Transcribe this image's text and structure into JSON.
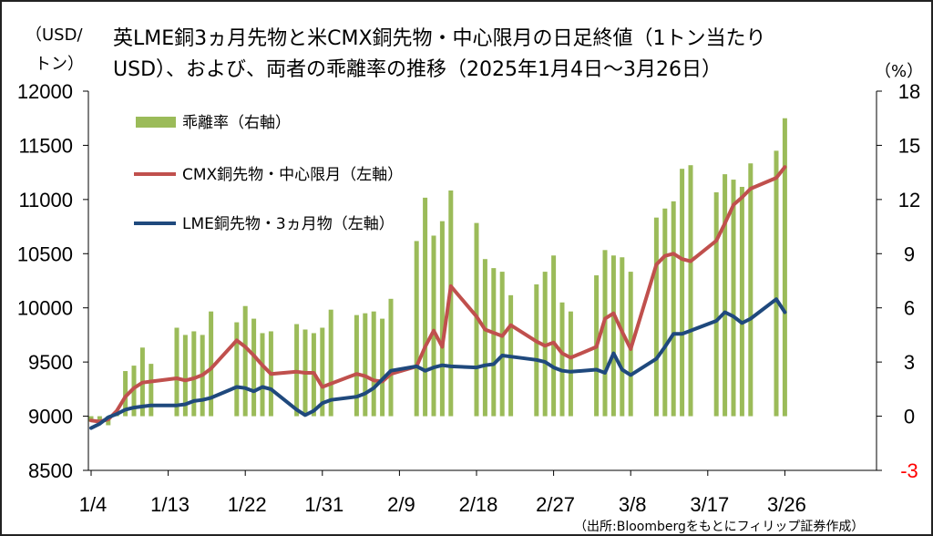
{
  "title": {
    "line1": "英LME銅3ヵ月先物と米CMX銅先物・中心限月の日足終値（1トン当たり",
    "line2": "USD）、および、両者の乖離率の推移（2025年1月4日～3月26日）"
  },
  "left_axis_label": {
    "line1": "（USD/",
    "line2": "トン）"
  },
  "right_axis_label": "（%）",
  "source": "（出所:Bloombergをもとにフィリップ証券作成）",
  "colors": {
    "bar": "#9bbb59",
    "cmx": "#c0504d",
    "lme": "#1f497d",
    "negative_tick": "#ff0000"
  },
  "chart_data": {
    "type": "bar+line",
    "x_tick_labels": [
      "1/4",
      "1/13",
      "1/22",
      "1/31",
      "2/9",
      "2/18",
      "2/27",
      "3/8",
      "3/17",
      "3/26"
    ],
    "x_tick_days": [
      0,
      9,
      18,
      27,
      36,
      45,
      54,
      63,
      72,
      81
    ],
    "left_axis": {
      "min": 8500,
      "max": 12000,
      "step": 500,
      "ticks": [
        "8500",
        "9000",
        "9500",
        "10000",
        "10500",
        "11000",
        "11500",
        "12000"
      ]
    },
    "right_axis": {
      "min": -3,
      "max": 18,
      "step": 3,
      "ticks": [
        "-3",
        "0",
        "3",
        "6",
        "9",
        "12",
        "15",
        "18"
      ]
    },
    "grid": false,
    "legend_position": "top-left",
    "legend": [
      {
        "label": "乖離率（右軸）",
        "kind": "bar"
      },
      {
        "label": "CMX銅先物・中心限月（左軸）",
        "kind": "line"
      },
      {
        "label": "LME銅先物・3ヵ月物（左軸）",
        "kind": "line"
      }
    ],
    "series": [
      {
        "name": "乖離率（右軸）",
        "type": "bar",
        "axis": "right",
        "x": [
          0,
          1,
          2,
          3,
          4,
          5,
          6,
          7,
          10,
          11,
          12,
          13,
          14,
          17,
          18,
          19,
          20,
          21,
          24,
          25,
          26,
          27,
          28,
          31,
          32,
          33,
          34,
          35,
          38,
          39,
          40,
          41,
          42,
          45,
          46,
          47,
          48,
          49,
          52,
          53,
          54,
          55,
          56,
          59,
          60,
          61,
          62,
          63,
          66,
          67,
          68,
          69,
          70,
          73,
          74,
          75,
          76,
          77,
          80,
          81
        ],
        "values": [
          -0.3,
          -0.4,
          -0.5,
          0.2,
          2.5,
          2.8,
          3.8,
          2.9,
          4.9,
          4.5,
          4.7,
          4.5,
          5.8,
          5.2,
          6.1,
          5.4,
          4.6,
          4.7,
          5.1,
          4.8,
          4.6,
          4.9,
          5.9,
          5.6,
          5.7,
          5.8,
          5.4,
          6.5,
          9.7,
          12.1,
          10.0,
          10.8,
          12.5,
          10.7,
          8.7,
          8.2,
          8.0,
          6.7,
          7.3,
          8.0,
          8.9,
          6.3,
          5.8,
          7.8,
          9.2,
          8.9,
          8.8,
          8.0,
          11.0,
          11.5,
          11.9,
          13.7,
          13.9,
          12.4,
          13.4,
          13.1,
          12.7,
          14.0,
          14.7,
          16.5
        ]
      },
      {
        "name": "CMX銅先物・中心限月（左軸）",
        "type": "line",
        "axis": "left",
        "x": [
          0,
          1,
          2,
          3,
          4,
          5,
          6,
          7,
          10,
          11,
          12,
          13,
          14,
          17,
          18,
          19,
          20,
          21,
          24,
          25,
          26,
          27,
          28,
          31,
          32,
          33,
          34,
          35,
          38,
          39,
          40,
          41,
          42,
          45,
          46,
          47,
          48,
          49,
          52,
          53,
          54,
          55,
          56,
          59,
          60,
          61,
          62,
          63,
          66,
          67,
          68,
          69,
          70,
          73,
          74,
          75,
          76,
          77,
          80,
          81
        ],
        "values": [
          8960,
          8950,
          8970,
          9050,
          9180,
          9260,
          9310,
          9320,
          9350,
          9330,
          9350,
          9380,
          9440,
          9700,
          9640,
          9560,
          9470,
          9390,
          9410,
          9400,
          9400,
          9270,
          9300,
          9390,
          9370,
          9330,
          9320,
          9390,
          9460,
          9640,
          9790,
          9640,
          10200,
          9920,
          9800,
          9770,
          9740,
          9840,
          9690,
          9650,
          9680,
          9580,
          9540,
          9640,
          9900,
          9950,
          9780,
          9620,
          10400,
          10480,
          10500,
          10450,
          10430,
          10620,
          10780,
          10950,
          11020,
          11100,
          11200,
          11300
        ]
      },
      {
        "name": "LME銅先物・3ヵ月物（左軸）",
        "type": "line",
        "axis": "left",
        "x": [
          0,
          1,
          2,
          3,
          4,
          5,
          6,
          7,
          10,
          11,
          12,
          13,
          14,
          17,
          18,
          19,
          20,
          21,
          24,
          25,
          26,
          27,
          28,
          31,
          32,
          33,
          34,
          35,
          38,
          39,
          40,
          41,
          42,
          45,
          46,
          47,
          48,
          49,
          52,
          53,
          54,
          55,
          56,
          59,
          60,
          61,
          62,
          63,
          66,
          67,
          68,
          69,
          70,
          73,
          74,
          75,
          76,
          77,
          80,
          81
        ],
        "values": [
          8890,
          8930,
          8990,
          9020,
          9060,
          9080,
          9090,
          9100,
          9100,
          9110,
          9140,
          9150,
          9170,
          9270,
          9260,
          9230,
          9270,
          9250,
          9060,
          9010,
          9050,
          9120,
          9150,
          9180,
          9210,
          9260,
          9340,
          9420,
          9460,
          9420,
          9450,
          9470,
          9460,
          9450,
          9470,
          9480,
          9560,
          9550,
          9520,
          9500,
          9450,
          9420,
          9410,
          9430,
          9400,
          9580,
          9430,
          9380,
          9530,
          9640,
          9760,
          9760,
          9790,
          9880,
          9960,
          9920,
          9860,
          9900,
          10080,
          9960
        ]
      }
    ]
  }
}
